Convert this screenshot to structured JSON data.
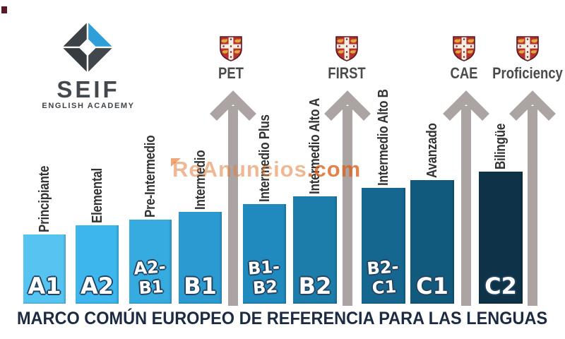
{
  "logo": {
    "brand": "SEIF",
    "subtitle": "ENGLISH ACADEMY",
    "accent_color": "#2e9fd8",
    "dark_color": "#3c4246"
  },
  "watermark": {
    "name": "ReAnuncios",
    "tld": ".com",
    "color": "#e07a3c"
  },
  "footer_title": "MARCO COMÚN EUROPEO DE REFERENCIA PARA LAS LENGUAS",
  "chart_data": {
    "type": "bar",
    "title": "MARCO COMÚN EUROPEO DE REFERENCIA PARA LAS LENGUAS",
    "categories": [
      "A1",
      "A2",
      "A2-B1",
      "B1",
      "B1-B2",
      "B2",
      "B2-C1",
      "C1",
      "C2"
    ],
    "category_labels": [
      "Principiante",
      "Elemental",
      "Pre-Intermedio",
      "Intermedio",
      "Intermedio Plus",
      "Intermedio Alto A",
      "Intermedio Alto B",
      "Avanzado",
      "Bilingüe"
    ],
    "values": [
      98,
      111,
      119,
      130,
      141,
      152,
      164,
      175,
      187
    ],
    "value_note": "relative bar heights (no numeric axis shown in image)",
    "bar_colors": [
      "#55c4f1",
      "#3cb6ec",
      "#35abdf",
      "#2b9ad1",
      "#2089bd",
      "#1c7dab",
      "#16678f",
      "#115a7e",
      "#0e3247"
    ],
    "arrow_color": "#aba4a2",
    "exam_markers": [
      {
        "label": "PET",
        "after_category": "B1"
      },
      {
        "label": "FIRST",
        "after_category": "B2"
      },
      {
        "label": "CAE",
        "after_category": "C1"
      },
      {
        "label": "Proficiency",
        "after_category": "C2"
      }
    ],
    "grid": false,
    "legend_position": "none"
  }
}
